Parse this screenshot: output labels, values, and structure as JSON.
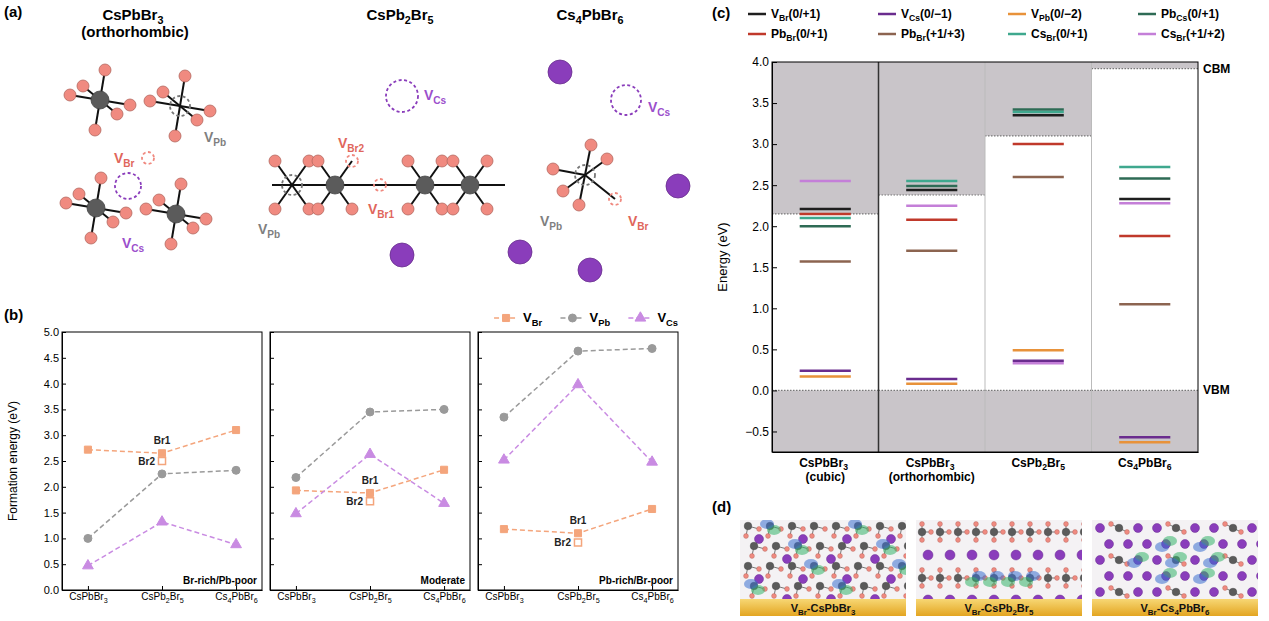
{
  "panel_labels": [
    "(a)",
    "(b)",
    "(c)",
    "(d)"
  ],
  "structures": [
    {
      "title": "CsPbBr3 (orthorhombic)",
      "defects": [
        "VBr",
        "VPb",
        "VCs"
      ]
    },
    {
      "title": "CsPb2Br5",
      "defects": [
        "VBr2",
        "VCs",
        "VPb",
        "VBr1"
      ]
    },
    {
      "title": "Cs4PbBr6",
      "defects": [
        "VCs",
        "VPb",
        "VBr"
      ]
    }
  ],
  "chart_data": [
    {
      "type": "line",
      "ylabel": "Formation energy (eV)",
      "categories": [
        "CsPbBr3",
        "CsPb2Br5",
        "Cs4PbBr6"
      ],
      "ylim": [
        0,
        5
      ],
      "yticks": [
        {
          "value": 0,
          "label": "0.0"
        },
        {
          "value": 0.5,
          "label": "0.5"
        },
        {
          "value": 1,
          "label": "1.0"
        },
        {
          "value": 1.5,
          "label": "1.5"
        },
        {
          "value": 2,
          "label": "2.0"
        },
        {
          "value": 2.5,
          "label": "2.5"
        },
        {
          "value": 3,
          "label": "3.0"
        },
        {
          "value": 3.5,
          "label": "3.5"
        },
        {
          "value": 4,
          "label": "4.0"
        },
        {
          "value": 4.5,
          "label": "4.5"
        },
        {
          "value": 5,
          "label": "5.0"
        }
      ],
      "legend": "top",
      "series": [
        {
          "name": "VBr",
          "color": "#f4a57c",
          "marker": "square",
          "line_style": "dashed"
        },
        {
          "name": "VPb",
          "color": "#9a9a9a",
          "marker": "circle",
          "line_style": "dashed"
        },
        {
          "name": "VCs",
          "color": "#c98be2",
          "marker": "triangle",
          "line_style": "dashed"
        }
      ],
      "subplots": [
        {
          "title": "Br-rich/Pb-poor",
          "values": [
            [
              2.72,
              2.65,
              3.1
            ],
            [
              1.0,
              2.25,
              2.32
            ],
            [
              0.47,
              1.32,
              0.88
            ]
          ],
          "annotations": [
            {
              "text": "Br1",
              "category": 1,
              "value": 2.65
            },
            {
              "text": "Br2",
              "category": 1,
              "value": 2.5,
              "marker": "open-square"
            }
          ]
        },
        {
          "title": "Moderate",
          "values": [
            [
              1.93,
              1.88,
              2.33
            ],
            [
              2.18,
              3.45,
              3.5
            ],
            [
              1.48,
              2.63,
              1.68
            ]
          ],
          "annotations": [
            {
              "text": "Br1",
              "category": 1,
              "value": 1.88
            },
            {
              "text": "Br2",
              "category": 1,
              "value": 1.72,
              "marker": "open-square"
            }
          ]
        },
        {
          "title": "Pb-rich/Br-poor",
          "values": [
            [
              1.18,
              1.1,
              1.57
            ],
            [
              3.35,
              4.63,
              4.68
            ],
            [
              2.52,
              3.98,
              2.48
            ]
          ],
          "annotations": [
            {
              "text": "Br1",
              "category": 1,
              "value": 1.1
            },
            {
              "text": "Br2",
              "category": 1,
              "value": 0.92,
              "marker": "open-square"
            }
          ]
        }
      ]
    },
    {
      "type": "level",
      "ylabel": "Energy (eV)",
      "categories": [
        "CsPbBr3 (cubic)",
        "CsPbBr3 (orthorhombic)",
        "CsPb2Br5",
        "Cs4PbBr6"
      ],
      "ylim": [
        -0.75,
        4.0
      ],
      "yticks": [
        {
          "value": -0.5,
          "label": "−0.5"
        },
        {
          "value": 0,
          "label": "0.0"
        },
        {
          "value": 0.5,
          "label": "0.5"
        },
        {
          "value": 1,
          "label": "1.0"
        },
        {
          "value": 1.5,
          "label": "1.5"
        },
        {
          "value": 2,
          "label": "2.0"
        },
        {
          "value": 2.5,
          "label": "2.5"
        },
        {
          "value": 3,
          "label": "3.0"
        },
        {
          "value": 3.5,
          "label": "3.5"
        },
        {
          "value": 4,
          "label": "4.0"
        }
      ],
      "legend": "top",
      "vbm": [
        0,
        0,
        0,
        0
      ],
      "cbm": [
        2.15,
        2.38,
        3.1,
        3.92
      ],
      "vbm_label": "VBM",
      "cbm_label": "CBM",
      "series": [
        {
          "name": "VBr(0/+1)",
          "color": "#1f1f1f",
          "values": [
            2.21,
            2.44,
            3.35,
            2.33
          ]
        },
        {
          "name": "VCs(0/−1)",
          "color": "#6a2c8e",
          "values": [
            0.24,
            0.14,
            0.36,
            -0.57
          ]
        },
        {
          "name": "VPb(0/−2)",
          "color": "#e8923a",
          "values": [
            0.17,
            0.08,
            0.49,
            -0.63
          ]
        },
        {
          "name": "PbCs(0/+1)",
          "color": "#2e6b55",
          "values": [
            2.0,
            2.49,
            3.42,
            2.58
          ]
        },
        {
          "name": "PbBr(0/+1)",
          "color": "#c0392b",
          "values": [
            2.15,
            2.08,
            3.0,
            1.88
          ]
        },
        {
          "name": "PbBr(+1/+3)",
          "color": "#8c6450",
          "values": [
            1.57,
            1.7,
            2.6,
            1.05
          ]
        },
        {
          "name": "CsBr(0/+1)",
          "color": "#3fa88e",
          "values": [
            2.1,
            2.55,
            3.39,
            2.72
          ]
        },
        {
          "name": "CsBr(+1/+2)",
          "color": "#c47fd8",
          "values": [
            2.55,
            2.25,
            0.33,
            2.28
          ]
        }
      ]
    }
  ],
  "images": {
    "labels": [
      "VBr-CsPbBr3",
      "VBr-CsPb2Br5",
      "VBr-Cs4PbBr6"
    ]
  }
}
